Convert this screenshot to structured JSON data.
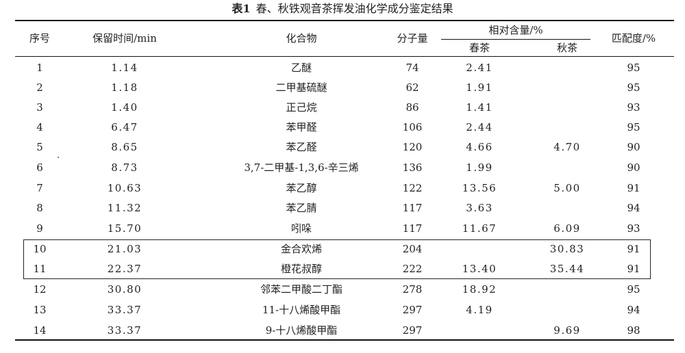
{
  "caption": {
    "label": "表1",
    "title": "春、秋铁观音茶挥发油化学成分鉴定结果"
  },
  "headers": {
    "no": "序号",
    "rt": "保留时间/min",
    "compound": "化合物",
    "mw": "分子量",
    "content": "相对含量/%",
    "spring": "春茶",
    "autumn": "秋茶",
    "match": "匹配度/%"
  },
  "rows": [
    {
      "no": "1",
      "rt": "1.14",
      "compound": "乙醚",
      "mw": "74",
      "spring": "2.41",
      "autumn": "",
      "match": "95"
    },
    {
      "no": "2",
      "rt": "1.18",
      "compound": "二甲基硫醚",
      "mw": "62",
      "spring": "1.91",
      "autumn": "",
      "match": "95"
    },
    {
      "no": "3",
      "rt": "1.40",
      "compound": "正己烷",
      "mw": "86",
      "spring": "1.41",
      "autumn": "",
      "match": "93"
    },
    {
      "no": "4",
      "rt": "6.47",
      "compound": "苯甲醛",
      "mw": "106",
      "spring": "2.44",
      "autumn": "",
      "match": "95"
    },
    {
      "no": "5",
      "rt": "8.65",
      "compound": "苯乙醛",
      "mw": "120",
      "spring": "4.66",
      "autumn": "4.70",
      "match": "90"
    },
    {
      "no": "6",
      "rt": "8.73",
      "compound": "3,7-二甲基-1,3,6-辛三烯",
      "mw": "136",
      "spring": "1.99",
      "autumn": "",
      "match": "90"
    },
    {
      "no": "7",
      "rt": "10.63",
      "compound": "苯乙醇",
      "mw": "122",
      "spring": "13.56",
      "autumn": "5.00",
      "match": "91"
    },
    {
      "no": "8",
      "rt": "11.32",
      "compound": "苯乙腈",
      "mw": "117",
      "spring": "3.63",
      "autumn": "",
      "match": "94"
    },
    {
      "no": "9",
      "rt": "15.70",
      "compound": "吲哚",
      "mw": "117",
      "spring": "11.67",
      "autumn": "6.09",
      "match": "93"
    },
    {
      "no": "10",
      "rt": "21.03",
      "compound": "金合欢烯",
      "mw": "204",
      "spring": "",
      "autumn": "30.83",
      "match": "91"
    },
    {
      "no": "11",
      "rt": "22.37",
      "compound": "橙花叔醇",
      "mw": "222",
      "spring": "13.40",
      "autumn": "35.44",
      "match": "91"
    },
    {
      "no": "12",
      "rt": "30.80",
      "compound": "邻苯二甲酸二丁酯",
      "mw": "278",
      "spring": "18.92",
      "autumn": "",
      "match": "95"
    },
    {
      "no": "13",
      "rt": "33.37",
      "compound": "11-十八烯酸甲酯",
      "mw": "297",
      "spring": "4.19",
      "autumn": "",
      "match": "94"
    },
    {
      "no": "14",
      "rt": "33.37",
      "compound": "9-十八烯酸甲酯",
      "mw": "297",
      "spring": "",
      "autumn": "9.69",
      "match": "98"
    }
  ]
}
